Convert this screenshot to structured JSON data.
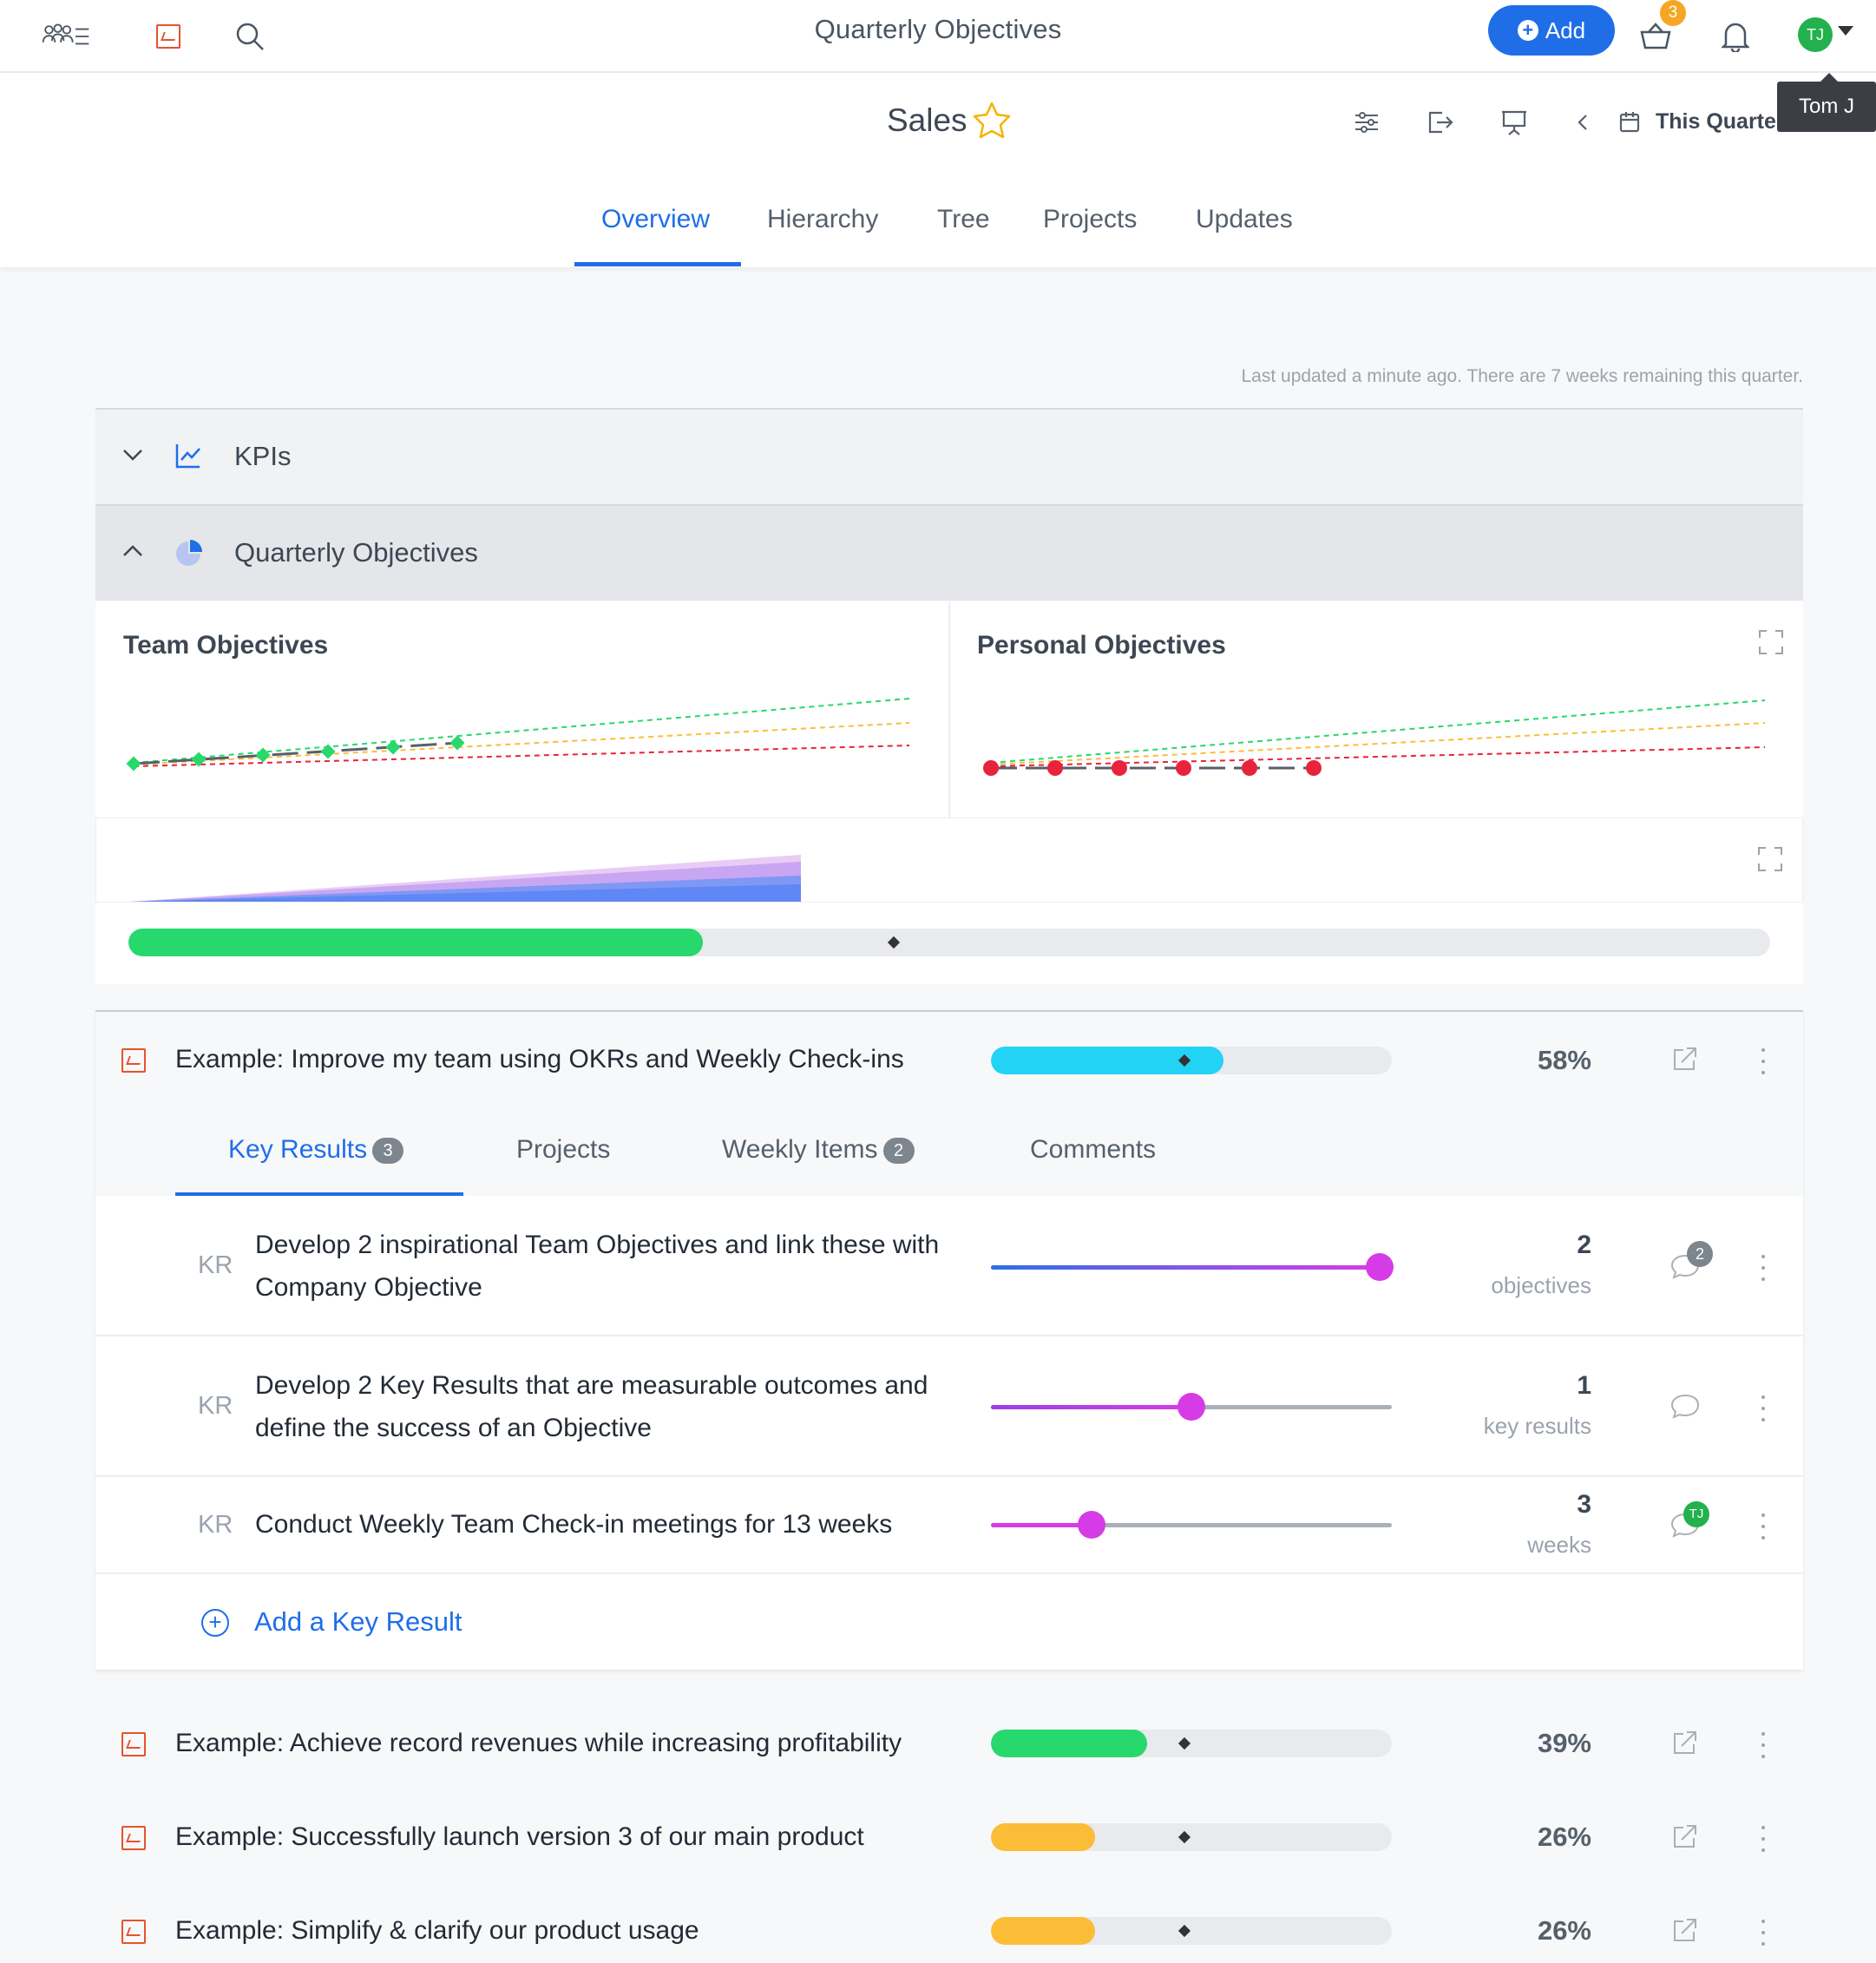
{
  "topbar": {
    "title": "Quarterly Objectives",
    "add_label": "Add",
    "basket_badge": "3",
    "avatar_initials": "TJ",
    "tooltip": "Tom J"
  },
  "header": {
    "title": "Sales",
    "quarter_label": "This Quarter",
    "tabs": [
      "Overview",
      "Hierarchy",
      "Tree",
      "Projects",
      "Updates"
    ],
    "active_tab": "Overview"
  },
  "status_text": "Last updated a minute ago. There are 7 weeks remaining this quarter.",
  "sections": {
    "kpis": "KPIs",
    "quarterly": "Quarterly Objectives"
  },
  "panels": {
    "team": "Team Objectives",
    "personal": "Personal Objectives"
  },
  "overall_progress": 0.35,
  "objectives": [
    {
      "title": "Example: Improve my team using OKRs and Weekly Check-ins",
      "percent": "58%",
      "progress": 0.58,
      "color": "#22d3f5"
    },
    {
      "title": "Example: Achieve record revenues while increasing profitability",
      "percent": "39%",
      "progress": 0.39,
      "color": "#27d86c"
    },
    {
      "title": "Example: Successfully launch version 3 of our main product",
      "percent": "26%",
      "progress": 0.26,
      "color": "#fbbd38"
    },
    {
      "title": "Example: Simplify & clarify our product usage",
      "percent": "26%",
      "progress": 0.26,
      "color": "#fbbd38"
    }
  ],
  "subtabs": [
    {
      "label": "Key Results",
      "count": "3"
    },
    {
      "label": "Projects",
      "count": ""
    },
    {
      "label": "Weekly Items",
      "count": "2"
    },
    {
      "label": "Comments",
      "count": ""
    }
  ],
  "key_results": [
    {
      "tag": "KR",
      "text": "Develop 2 inspirational Team Objectives and link these with Company Objective",
      "value": "2",
      "unit": "objectives",
      "progress": 0.97,
      "comments": "2"
    },
    {
      "tag": "KR",
      "text": "Develop 2 Key Results that are measurable outcomes and define the success of an Objective",
      "value": "1",
      "unit": "key results",
      "progress": 0.5,
      "comments": ""
    },
    {
      "tag": "KR",
      "text": "Conduct Weekly Team Check-in meetings for 13 weeks",
      "value": "3",
      "unit": "weeks",
      "progress": 0.25,
      "comments": "TJ"
    }
  ],
  "add_kr_label": "Add a Key Result",
  "colors": {
    "accent": "#1f6ee8",
    "objective_icon": "#e5532d",
    "green": "#27d86c",
    "red": "#e8233b"
  }
}
